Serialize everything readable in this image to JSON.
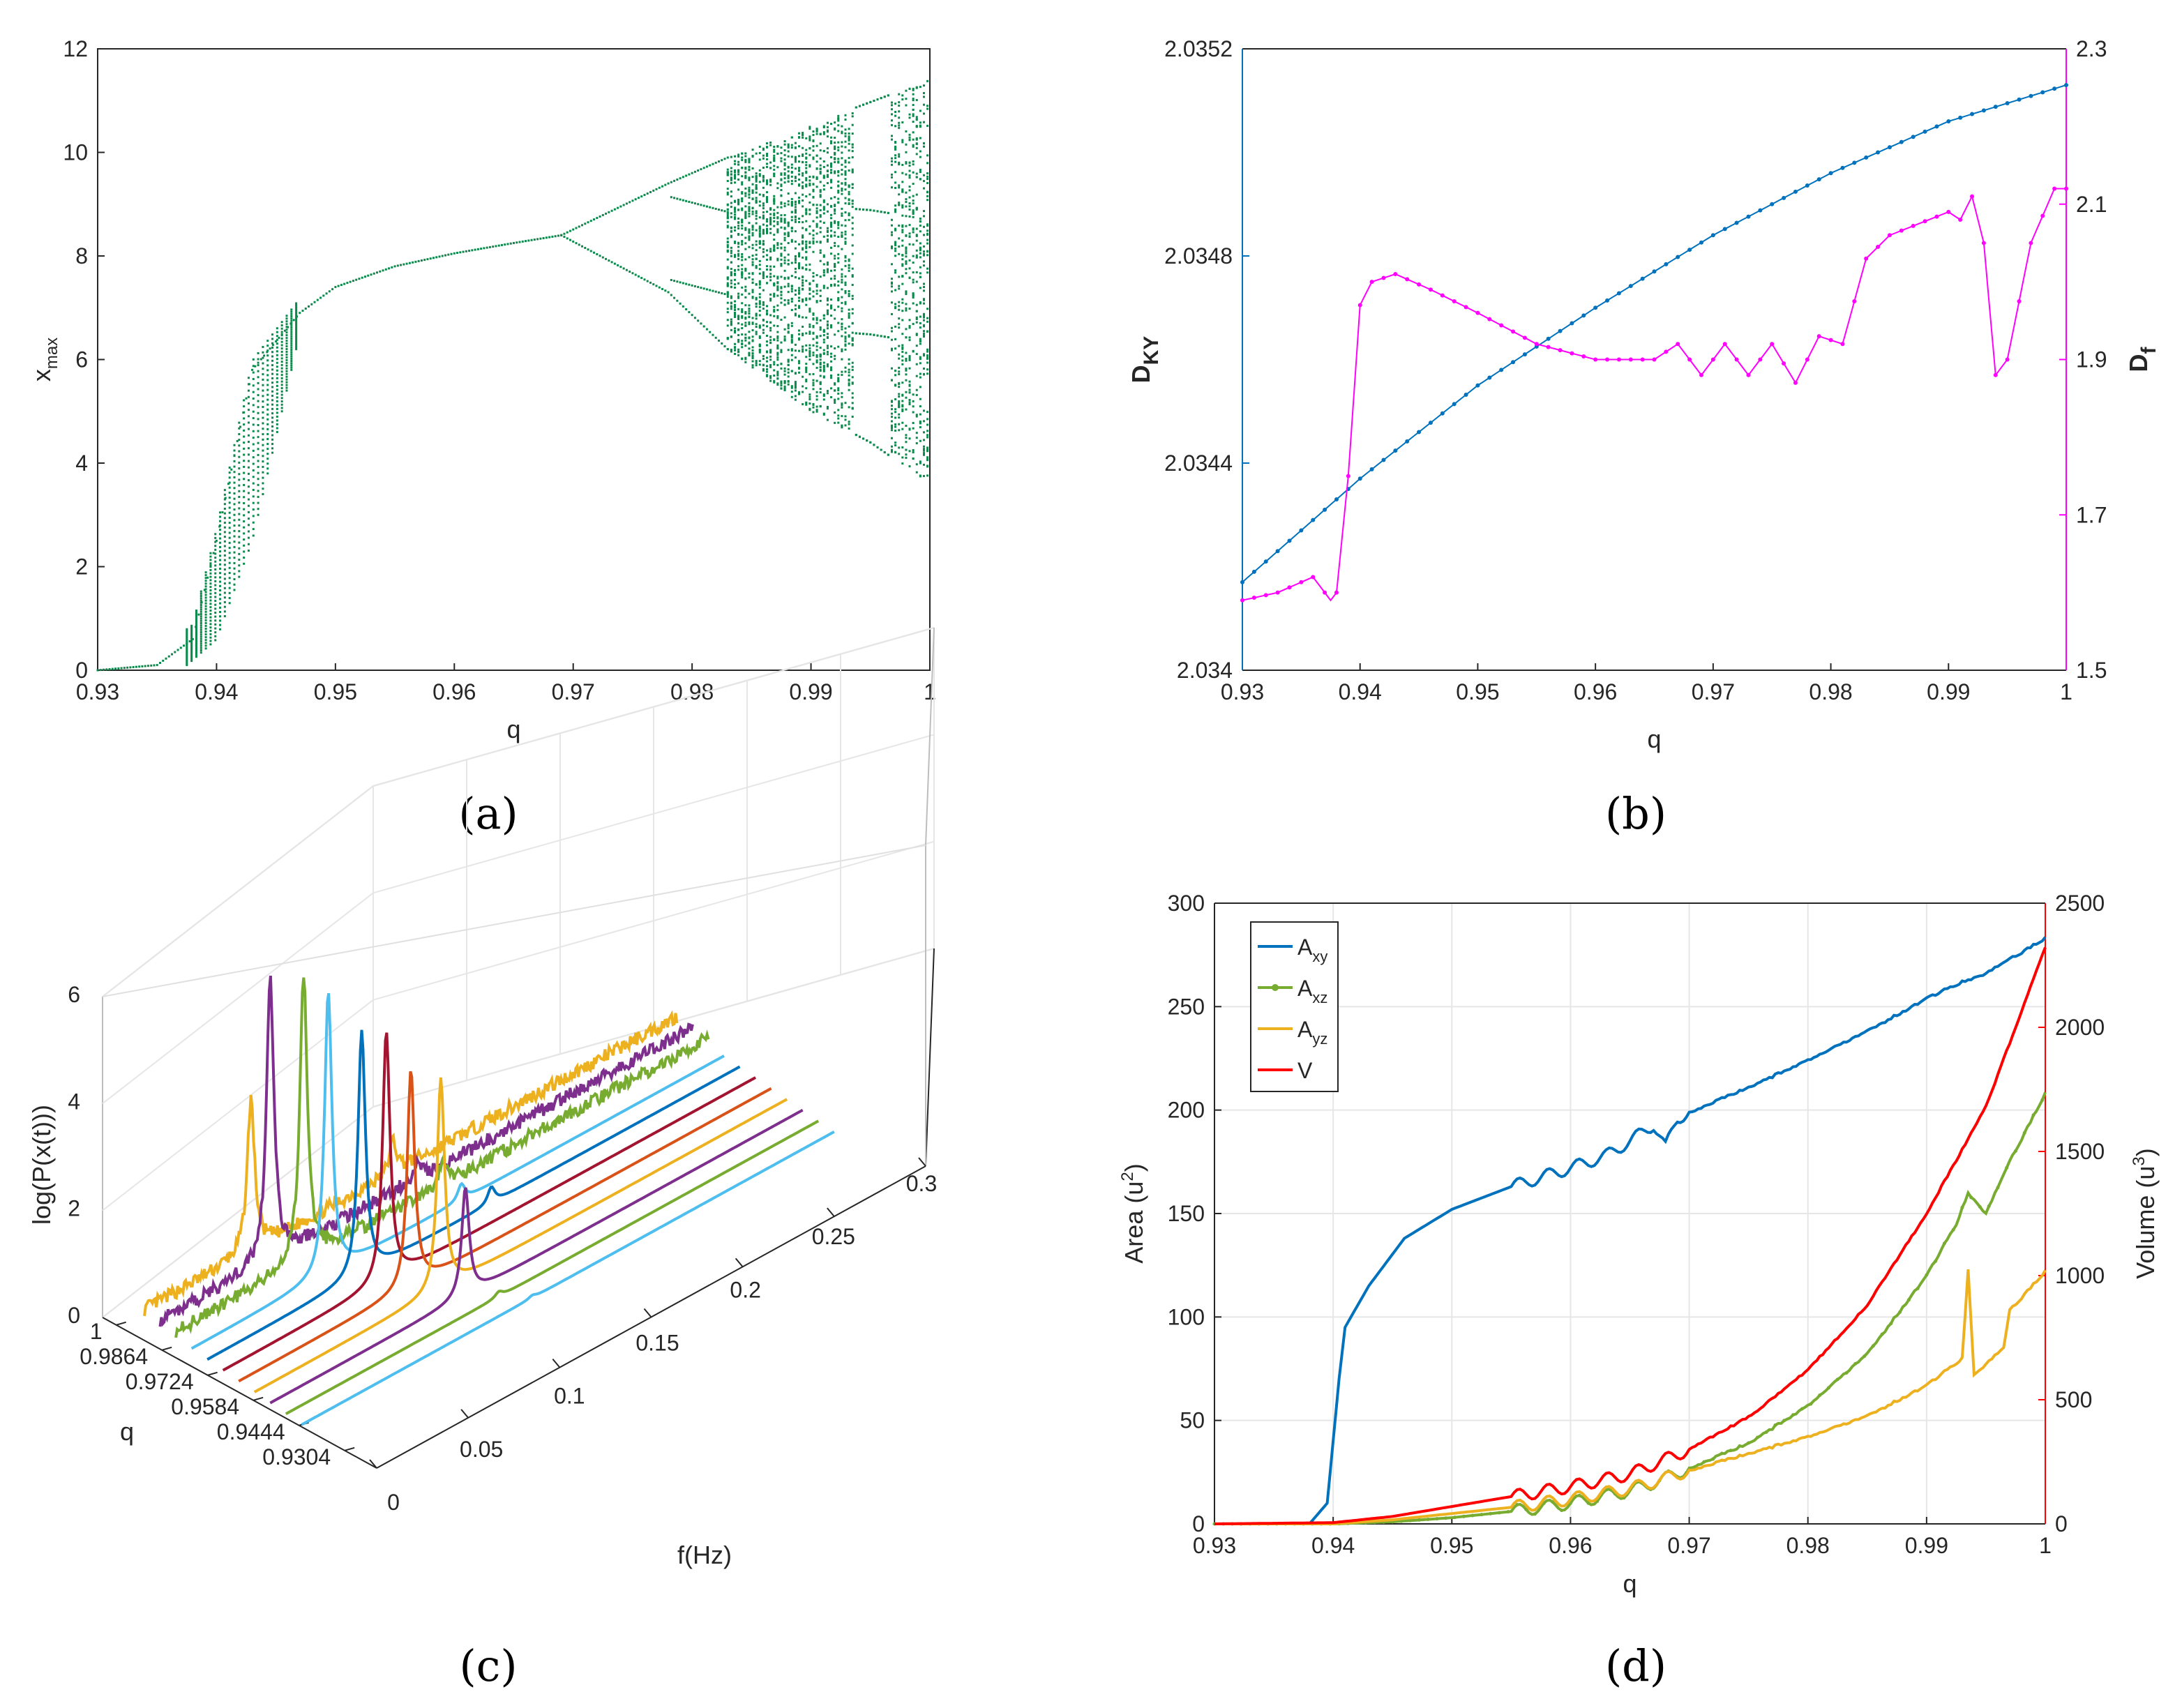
{
  "colors": {
    "bifurcation": "#0b8a4c",
    "dky": "#0072bd",
    "df": "#ff00ff",
    "axy": "#0072bd",
    "axz": "#77ac30",
    "ayz": "#edb120",
    "v": "#ff0000",
    "grid": "#e6e6e6",
    "axis": "#262626"
  },
  "chart_data": [
    {
      "id": "a",
      "panel_label": "(a)",
      "type": "scatter",
      "title": "",
      "xlabel": "q",
      "ylabel": "x",
      "ylabel_sub": "max",
      "xlim": [
        0.93,
        1
      ],
      "ylim": [
        0,
        12
      ],
      "xticks": [
        "0.93",
        "0.94",
        "0.95",
        "0.96",
        "0.97",
        "0.98",
        "0.99",
        "1"
      ],
      "yticks": [
        "0",
        "2",
        "4",
        "6",
        "8",
        "10",
        "12"
      ],
      "description_points": {
        "fixed_branch_q": [
          0.93,
          0.935,
          0.938,
          0.94,
          0.943,
          0.947,
          0.95,
          0.955,
          0.96,
          0.965,
          0.969
        ],
        "fixed_branch_x": [
          0.0,
          0.1,
          0.6,
          2.5,
          5.8,
          6.9,
          7.4,
          7.8,
          8.05,
          8.25,
          8.4
        ],
        "period2_split_q": 0.969,
        "period4_split_q": 0.978,
        "chaos_onset_q": 0.983,
        "upper_envelope": [
          [
            0.969,
            8.4
          ],
          [
            0.978,
            9.4
          ],
          [
            0.983,
            9.9
          ],
          [
            0.99,
            10.5
          ],
          [
            0.993,
            10.8
          ],
          [
            1.0,
            11.4
          ]
        ],
        "lower_envelope": [
          [
            0.969,
            8.4
          ],
          [
            0.978,
            7.3
          ],
          [
            0.983,
            6.2
          ],
          [
            0.99,
            5.0
          ],
          [
            0.995,
            4.4
          ],
          [
            1.0,
            3.6
          ]
        ]
      }
    },
    {
      "id": "b",
      "panel_label": "(b)",
      "type": "line",
      "xlabel": "q",
      "ylabel_left": "D",
      "ylabel_left_sub": "KY",
      "ylabel_right": "D",
      "ylabel_right_sub": "f",
      "xlim": [
        0.93,
        1
      ],
      "ylim_left": [
        2.034,
        2.0352
      ],
      "ylim_right": [
        1.5,
        2.3
      ],
      "xticks": [
        "0.93",
        "0.94",
        "0.95",
        "0.96",
        "0.97",
        "0.98",
        "0.99",
        "1"
      ],
      "yticks_left": [
        "2.034",
        "2.0344",
        "2.0348",
        "2.0352"
      ],
      "yticks_right": [
        "1.5",
        "1.7",
        "1.9",
        "2.1",
        "2.3"
      ],
      "series": [
        {
          "name": "D_KY",
          "axis": "left",
          "x": [
            0.93,
            0.94,
            0.95,
            0.96,
            0.97,
            0.98,
            0.99,
            1.0
          ],
          "values": [
            2.03417,
            2.03437,
            2.03455,
            2.0347,
            2.03484,
            2.03496,
            2.03506,
            2.03513
          ]
        },
        {
          "name": "D_f",
          "axis": "right",
          "x": [
            0.93,
            0.933,
            0.936,
            0.9375,
            0.938,
            0.939,
            0.94,
            0.941,
            0.943,
            0.946,
            0.95,
            0.955,
            0.96,
            0.965,
            0.967,
            0.969,
            0.971,
            0.973,
            0.975,
            0.977,
            0.979,
            0.981,
            0.983,
            0.985,
            0.99,
            0.991,
            0.992,
            0.993,
            0.994,
            0.995,
            0.997,
            0.999,
            1.0
          ],
          "values": [
            1.59,
            1.6,
            1.62,
            1.59,
            1.6,
            1.75,
            1.97,
            2.0,
            2.01,
            1.99,
            1.96,
            1.92,
            1.9,
            1.9,
            1.92,
            1.88,
            1.92,
            1.88,
            1.92,
            1.87,
            1.93,
            1.92,
            2.03,
            2.06,
            2.09,
            2.08,
            2.11,
            2.05,
            1.88,
            1.9,
            2.05,
            2.12,
            2.12
          ]
        }
      ]
    },
    {
      "id": "c",
      "panel_label": "(c)",
      "type": "line",
      "xlabel": "f(Hz)",
      "ylabel": "q",
      "zlabel": "log(P(x(t)))",
      "xticks": [
        "0",
        "0.05",
        "0.1",
        "0.15",
        "0.2",
        "0.25",
        "0.3"
      ],
      "yticks": [
        "1",
        "0.9864",
        "0.9724",
        "0.9584",
        "0.9444",
        "0.9304"
      ],
      "zticks": [
        "0",
        "2",
        "4",
        "6"
      ],
      "xlim": [
        0,
        0.3
      ],
      "zlim": [
        0,
        6
      ],
      "traces": [
        {
          "q": 1.0,
          "color": "#edb120",
          "peaks": [
            [
              0.06,
              2.8
            ],
            [
              0.14,
              0.6
            ]
          ]
        },
        {
          "q": 0.9972,
          "color": "#7e2f8e",
          "peaks": [
            [
              0.062,
              5.2
            ],
            [
              0.145,
              0.4
            ]
          ]
        },
        {
          "q": 0.9944,
          "color": "#77ac30",
          "peaks": [
            [
              0.072,
              5.3
            ],
            [
              0.15,
              0.4
            ]
          ]
        },
        {
          "q": 0.9916,
          "color": "#4dbeee",
          "peaks": [
            [
              0.077,
              5.2
            ],
            [
              0.152,
              0.3
            ]
          ]
        },
        {
          "q": 0.9888,
          "color": "#0072bd",
          "peaks": [
            [
              0.087,
              4.5
            ],
            [
              0.16,
              0.3
            ]
          ]
        },
        {
          "q": 0.986,
          "color": "#a2142f",
          "peaks": [
            [
              0.092,
              4.6
            ]
          ]
        },
        {
          "q": 0.9832,
          "color": "#d95319",
          "peaks": [
            [
              0.097,
              4.0
            ]
          ]
        },
        {
          "q": 0.9804,
          "color": "#edb120",
          "peaks": [
            [
              0.105,
              3.9
            ]
          ]
        },
        {
          "q": 0.9776,
          "color": "#7e2f8e",
          "peaks": [
            [
              0.11,
              2.0
            ]
          ]
        },
        {
          "q": 0.9748,
          "color": "#77ac30",
          "peaks": [
            [
              0.12,
              0.1
            ]
          ]
        },
        {
          "q": 0.972,
          "color": "#4dbeee",
          "peaks": [
            [
              0.13,
              0.05
            ]
          ]
        }
      ]
    },
    {
      "id": "d",
      "panel_label": "(d)",
      "type": "line",
      "xlabel": "q",
      "ylabel_left": "Area (u",
      "ylabel_left_sup": "2",
      "ylabel_right": "Volume (u",
      "ylabel_right_sup": "3",
      "xlim": [
        0.93,
        1
      ],
      "ylim_left": [
        0,
        300
      ],
      "ylim_right": [
        0,
        2500
      ],
      "xticks": [
        "0.93",
        "0.94",
        "0.95",
        "0.96",
        "0.97",
        "0.98",
        "0.99",
        "1"
      ],
      "yticks_left": [
        "0",
        "50",
        "100",
        "150",
        "200",
        "250",
        "300"
      ],
      "yticks_right": [
        "0",
        "500",
        "1000",
        "1500",
        "2000",
        "2500"
      ],
      "legend": {
        "position": "top-left",
        "entries": [
          {
            "label": "A",
            "sub": "xy",
            "series": "axy"
          },
          {
            "label": "A",
            "sub": "xz",
            "series": "axz"
          },
          {
            "label": "A",
            "sub": "yz",
            "series": "ayz"
          },
          {
            "label": "V",
            "sub": "",
            "series": "v"
          }
        ]
      },
      "series": [
        {
          "name": "axy",
          "axis": "left",
          "x": [
            0.93,
            0.938,
            0.9395,
            0.9405,
            0.941,
            0.943,
            0.946,
            0.95,
            0.955,
            0.96,
            0.963,
            0.965,
            0.967,
            0.968,
            0.969,
            0.97,
            0.975,
            0.98,
            0.985,
            0.99,
            0.993,
            0.995,
            1.0
          ],
          "values": [
            0,
            0,
            10,
            70,
            95,
            115,
            138,
            152,
            163,
            172,
            178,
            185,
            193,
            182,
            196,
            199,
            211,
            224,
            238,
            254,
            262,
            266,
            283
          ]
        },
        {
          "name": "axz",
          "axis": "left",
          "x": [
            0.93,
            0.94,
            0.945,
            0.95,
            0.955,
            0.96,
            0.965,
            0.968,
            0.97,
            0.975,
            0.98,
            0.985,
            0.99,
            0.9925,
            0.9935,
            0.995,
            0.997,
            1.0
          ],
          "values": [
            0,
            0,
            1,
            3,
            6,
            10,
            16,
            22,
            27,
            39,
            57,
            82,
            120,
            145,
            160,
            150,
            175,
            208
          ]
        },
        {
          "name": "ayz",
          "axis": "left",
          "x": [
            0.93,
            0.94,
            0.945,
            0.95,
            0.955,
            0.96,
            0.965,
            0.968,
            0.97,
            0.975,
            0.98,
            0.985,
            0.99,
            0.993,
            0.9935,
            0.994,
            0.9965,
            0.997,
            1.0
          ],
          "values": [
            0,
            0,
            2,
            5,
            8,
            12,
            17,
            22,
            26,
            34,
            42,
            52,
            67,
            80,
            123,
            72,
            85,
            103,
            122
          ]
        },
        {
          "name": "v",
          "axis": "right",
          "x": [
            0.93,
            0.94,
            0.945,
            0.95,
            0.955,
            0.96,
            0.965,
            0.968,
            0.97,
            0.975,
            0.98,
            0.985,
            0.99,
            0.995,
            1.0
          ],
          "values": [
            0,
            5,
            30,
            70,
            110,
            150,
            200,
            260,
            300,
            430,
            620,
            880,
            1250,
            1680,
            2320
          ]
        }
      ]
    }
  ]
}
